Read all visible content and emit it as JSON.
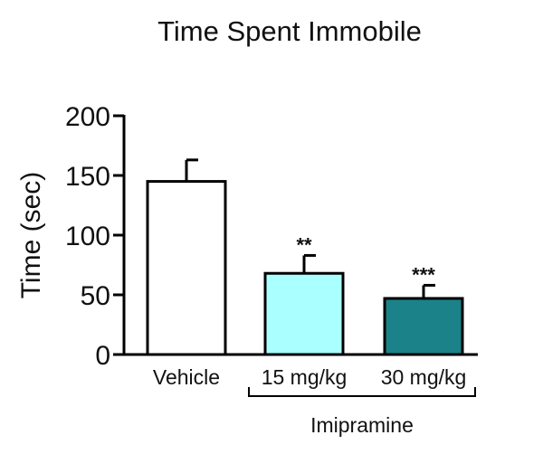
{
  "chart_data": {
    "type": "bar",
    "title": "Time Spent Immobile",
    "xlabel": "",
    "ylabel": "Time (sec)",
    "ylim": [
      0,
      200
    ],
    "yticks": [
      0,
      50,
      100,
      150,
      200
    ],
    "grid": false,
    "categories": [
      "Vehicle",
      "15 mg/kg",
      "30 mg/kg"
    ],
    "values": [
      145,
      68,
      47
    ],
    "error": [
      18,
      15,
      11
    ],
    "significance": [
      "",
      "**",
      "***"
    ],
    "bar_colors": [
      "#ffffff",
      "#aaffff",
      "#1a8288"
    ],
    "group_label": "Imipramine",
    "group_members": [
      "15 mg/kg",
      "30 mg/kg"
    ]
  }
}
